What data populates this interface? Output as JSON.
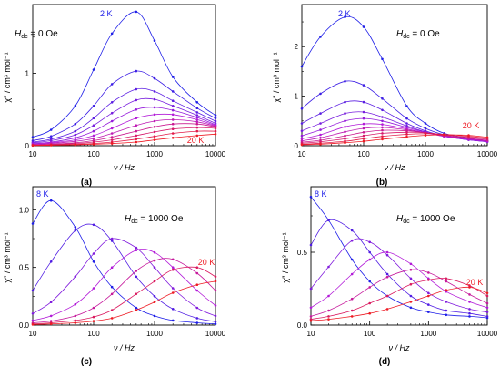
{
  "colors": {
    "axis": "#000000",
    "series_start": "#1f1fe8",
    "series_end": "#ee1b24"
  },
  "panels": [
    {
      "label": "(a)",
      "xlabel": "ν / Hz",
      "ylabel": "χ″ / cm³ mol⁻¹",
      "x_ticks": [
        "10",
        "100",
        "1000",
        "10000"
      ],
      "y_ticks": [
        "0",
        "1"
      ],
      "field_text": "H",
      "field_sub": "dc",
      "field_value": " = 0 Oe",
      "t_first": "2 K",
      "t_last": "20 K"
    },
    {
      "label": "(b)",
      "xlabel": "ν / Hz",
      "ylabel": "χ″ / cm³ mol⁻¹",
      "x_ticks": [
        "10",
        "100",
        "1000",
        "10000"
      ],
      "y_ticks": [
        "0",
        "1",
        "2"
      ],
      "field_text": "H",
      "field_sub": "dc",
      "field_value": " = 0 Oe",
      "t_first": "2 K",
      "t_last": "20 K"
    },
    {
      "label": "(c)",
      "xlabel": "ν / Hz",
      "ylabel": "χ″ / cm³ mol⁻¹",
      "x_ticks": [
        "10",
        "100",
        "1000",
        "10000"
      ],
      "y_ticks": [
        "0.0",
        "0.5",
        "1.0"
      ],
      "field_text": "H",
      "field_sub": "dc",
      "field_value": " = 1000 Oe",
      "t_first": "8 K",
      "t_last": "20 K"
    },
    {
      "label": "(d)",
      "xlabel": "ν / Hz",
      "ylabel": "χ″ / cm³ mol⁻¹",
      "x_ticks": [
        "10",
        "100",
        "1000",
        "10000"
      ],
      "y_ticks": [
        "0.0",
        "0.5"
      ],
      "field_text": "H",
      "field_sub": "dc",
      "field_value": " = 1000 Oe",
      "t_first": "8 K",
      "t_last": "20 K"
    }
  ],
  "chart_data": [
    {
      "type": "line",
      "panel": "(a)",
      "x_scale": "log",
      "xlim": [
        10,
        10000
      ],
      "ylim": [
        0,
        1.95
      ],
      "x": [
        10,
        20,
        50,
        100,
        200,
        500,
        1000,
        2000,
        5000,
        10000
      ],
      "series": [
        {
          "values": [
            0.12,
            0.22,
            0.55,
            1.05,
            1.55,
            1.85,
            1.45,
            0.95,
            0.6,
            0.42
          ]
        },
        {
          "values": [
            0.07,
            0.13,
            0.3,
            0.55,
            0.85,
            1.03,
            0.93,
            0.75,
            0.52,
            0.38
          ]
        },
        {
          "values": [
            0.05,
            0.09,
            0.2,
            0.38,
            0.6,
            0.78,
            0.75,
            0.62,
            0.46,
            0.34
          ]
        },
        {
          "values": [
            0.04,
            0.07,
            0.15,
            0.28,
            0.45,
            0.63,
            0.64,
            0.55,
            0.42,
            0.31
          ]
        },
        {
          "values": [
            0.03,
            0.05,
            0.11,
            0.2,
            0.34,
            0.5,
            0.53,
            0.49,
            0.39,
            0.29
          ]
        },
        {
          "values": [
            0.02,
            0.04,
            0.08,
            0.14,
            0.24,
            0.38,
            0.43,
            0.43,
            0.36,
            0.28
          ]
        },
        {
          "values": [
            0.015,
            0.03,
            0.06,
            0.1,
            0.17,
            0.28,
            0.34,
            0.36,
            0.33,
            0.27
          ]
        },
        {
          "values": [
            0.01,
            0.02,
            0.04,
            0.07,
            0.12,
            0.2,
            0.26,
            0.3,
            0.3,
            0.26
          ]
        },
        {
          "values": [
            0.01,
            0.015,
            0.03,
            0.05,
            0.08,
            0.14,
            0.19,
            0.23,
            0.25,
            0.24
          ]
        },
        {
          "values": [
            0.005,
            0.01,
            0.02,
            0.03,
            0.05,
            0.09,
            0.13,
            0.17,
            0.2,
            0.2
          ]
        },
        {
          "values": [
            0.003,
            0.006,
            0.012,
            0.02,
            0.03,
            0.05,
            0.08,
            0.11,
            0.14,
            0.16
          ]
        }
      ]
    },
    {
      "type": "line",
      "panel": "(b)",
      "x_scale": "log",
      "xlim": [
        10,
        10000
      ],
      "ylim": [
        0,
        2.85
      ],
      "x": [
        10,
        20,
        50,
        100,
        200,
        500,
        1000,
        2000,
        5000,
        10000
      ],
      "series": [
        {
          "values": [
            1.6,
            2.2,
            2.6,
            2.4,
            1.75,
            0.8,
            0.45,
            0.25,
            0.15,
            0.1
          ]
        },
        {
          "values": [
            0.75,
            1.05,
            1.3,
            1.22,
            0.95,
            0.55,
            0.35,
            0.22,
            0.13,
            0.09
          ]
        },
        {
          "values": [
            0.45,
            0.65,
            0.88,
            0.88,
            0.72,
            0.45,
            0.3,
            0.2,
            0.12,
            0.08
          ]
        },
        {
          "values": [
            0.3,
            0.45,
            0.65,
            0.68,
            0.58,
            0.4,
            0.28,
            0.19,
            0.12,
            0.08
          ]
        },
        {
          "values": [
            0.2,
            0.32,
            0.5,
            0.55,
            0.5,
            0.37,
            0.27,
            0.19,
            0.12,
            0.08
          ]
        },
        {
          "values": [
            0.14,
            0.22,
            0.38,
            0.44,
            0.43,
            0.34,
            0.26,
            0.19,
            0.13,
            0.09
          ]
        },
        {
          "values": [
            0.1,
            0.16,
            0.28,
            0.35,
            0.37,
            0.32,
            0.26,
            0.2,
            0.14,
            0.1
          ]
        },
        {
          "values": [
            0.07,
            0.11,
            0.2,
            0.27,
            0.31,
            0.3,
            0.26,
            0.21,
            0.15,
            0.11
          ]
        },
        {
          "values": [
            0.05,
            0.08,
            0.14,
            0.2,
            0.25,
            0.27,
            0.26,
            0.22,
            0.17,
            0.13
          ]
        },
        {
          "values": [
            0.03,
            0.05,
            0.09,
            0.14,
            0.19,
            0.23,
            0.24,
            0.23,
            0.19,
            0.15
          ]
        },
        {
          "values": [
            0.02,
            0.03,
            0.06,
            0.09,
            0.13,
            0.18,
            0.21,
            0.22,
            0.21,
            0.17
          ]
        }
      ]
    },
    {
      "type": "line",
      "panel": "(c)",
      "x_scale": "log",
      "xlim": [
        10,
        10000
      ],
      "ylim": [
        0,
        1.2
      ],
      "x": [
        10,
        20,
        50,
        100,
        200,
        500,
        1000,
        2000,
        5000,
        10000
      ],
      "series": [
        {
          "values": [
            0.88,
            1.08,
            0.85,
            0.55,
            0.33,
            0.15,
            0.08,
            0.04,
            0.02,
            0.01
          ]
        },
        {
          "values": [
            0.3,
            0.55,
            0.82,
            0.87,
            0.73,
            0.42,
            0.25,
            0.14,
            0.06,
            0.03
          ]
        },
        {
          "values": [
            0.1,
            0.2,
            0.42,
            0.62,
            0.75,
            0.67,
            0.5,
            0.32,
            0.15,
            0.08
          ]
        },
        {
          "values": [
            0.04,
            0.08,
            0.18,
            0.32,
            0.5,
            0.65,
            0.63,
            0.5,
            0.3,
            0.17
          ]
        },
        {
          "values": [
            0.02,
            0.035,
            0.08,
            0.15,
            0.27,
            0.47,
            0.56,
            0.57,
            0.45,
            0.3
          ]
        },
        {
          "values": [
            0.01,
            0.02,
            0.04,
            0.07,
            0.13,
            0.27,
            0.38,
            0.48,
            0.5,
            0.42
          ]
        },
        {
          "values": [
            0.005,
            0.01,
            0.02,
            0.035,
            0.06,
            0.13,
            0.2,
            0.28,
            0.35,
            0.38
          ]
        }
      ]
    },
    {
      "type": "line",
      "panel": "(d)",
      "x_scale": "log",
      "xlim": [
        10,
        10000
      ],
      "ylim": [
        0,
        0.95
      ],
      "x": [
        10,
        20,
        50,
        100,
        200,
        500,
        1000,
        2000,
        5000,
        10000
      ],
      "series": [
        {
          "values": [
            0.88,
            0.72,
            0.45,
            0.3,
            0.2,
            0.12,
            0.09,
            0.07,
            0.06,
            0.05
          ]
        },
        {
          "values": [
            0.55,
            0.72,
            0.65,
            0.5,
            0.35,
            0.2,
            0.14,
            0.1,
            0.08,
            0.06
          ]
        },
        {
          "values": [
            0.25,
            0.4,
            0.58,
            0.57,
            0.48,
            0.32,
            0.22,
            0.16,
            0.11,
            0.09
          ]
        },
        {
          "values": [
            0.12,
            0.2,
            0.35,
            0.45,
            0.5,
            0.42,
            0.32,
            0.23,
            0.16,
            0.12
          ]
        },
        {
          "values": [
            0.06,
            0.1,
            0.18,
            0.26,
            0.33,
            0.38,
            0.36,
            0.3,
            0.21,
            0.15
          ]
        },
        {
          "values": [
            0.04,
            0.06,
            0.1,
            0.15,
            0.2,
            0.28,
            0.31,
            0.32,
            0.27,
            0.2
          ]
        },
        {
          "values": [
            0.03,
            0.04,
            0.06,
            0.08,
            0.11,
            0.16,
            0.2,
            0.24,
            0.26,
            0.22
          ]
        }
      ]
    }
  ]
}
